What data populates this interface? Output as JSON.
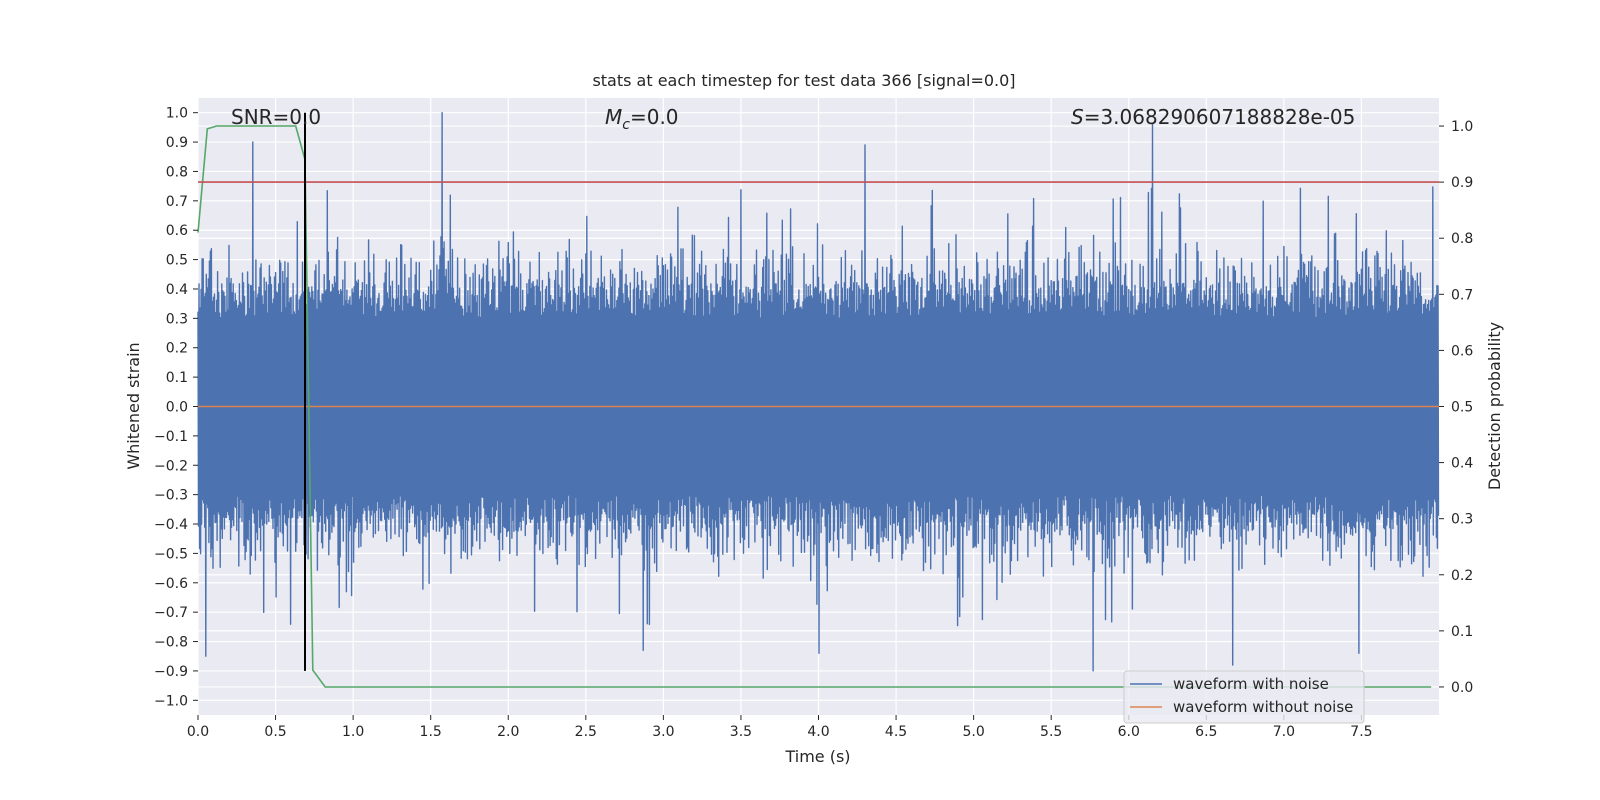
{
  "chart_data": {
    "type": "line",
    "title": "stats at each timestep for test data 366 [signal=0.0]",
    "xlabel": "Time (s)",
    "ylabel": "Whitened strain",
    "y2label": "Detection probability",
    "xlim": [
      0.0,
      8.0
    ],
    "ylim": [
      -1.05,
      1.05
    ],
    "y2lim": [
      -0.05,
      1.05
    ],
    "xticks": [
      0.0,
      0.5,
      1.0,
      1.5,
      2.0,
      2.5,
      3.0,
      3.5,
      4.0,
      4.5,
      5.0,
      5.5,
      6.0,
      6.5,
      7.0,
      7.5
    ],
    "yticks": [
      -1.0,
      -0.9,
      -0.8,
      -0.7,
      -0.6,
      -0.5,
      -0.4,
      -0.3,
      -0.2,
      -0.1,
      0.0,
      0.1,
      0.2,
      0.3,
      0.4,
      0.5,
      0.6,
      0.7,
      0.8,
      0.9,
      1.0
    ],
    "y2ticks": [
      0.0,
      0.1,
      0.2,
      0.3,
      0.4,
      0.5,
      0.6,
      0.7,
      0.8,
      0.9,
      1.0
    ],
    "grid": true,
    "legend_position": "lower-right",
    "annotations": {
      "snr": "SNR=0.0",
      "mc_symbol": "M",
      "mc_subscript": "c",
      "mc_value": "=0.0",
      "s_symbol": "S",
      "s_value": "=3.068290607188828e-05"
    },
    "series": [
      {
        "name": "waveform with noise",
        "axis": "left",
        "color": "#4c72b0",
        "description_stats": {
          "typical_abs_max": 0.45
        },
        "peaks": [
          {
            "x": 0.35,
            "y": 0.9
          },
          {
            "x": 1.57,
            "y": 1.0
          },
          {
            "x": 4.3,
            "y": 0.89
          },
          {
            "x": 6.15,
            "y": 0.96
          },
          {
            "x": 0.05,
            "y": -0.85
          },
          {
            "x": 2.87,
            "y": -0.83
          },
          {
            "x": 4.0,
            "y": -0.84
          },
          {
            "x": 5.77,
            "y": -0.9
          },
          {
            "x": 6.67,
            "y": -0.88
          },
          {
            "x": 7.48,
            "y": -0.84
          }
        ]
      },
      {
        "name": "waveform without noise",
        "axis": "left",
        "color": "#dd8452",
        "x": [
          0.0,
          8.0
        ],
        "y": [
          0.0,
          0.0
        ]
      },
      {
        "axis": "right",
        "color": "#55a868",
        "x": [
          0.0,
          0.06,
          0.12,
          0.3,
          0.5,
          0.63,
          0.69,
          0.74,
          0.82,
          1.2,
          7.95
        ],
        "y": [
          0.81,
          0.995,
          1.0,
          1.0,
          1.0,
          1.0,
          0.94,
          0.03,
          0.0,
          0.0,
          0.0
        ]
      },
      {
        "axis": "right",
        "color": "#c44e52",
        "x": [
          0.0,
          8.0
        ],
        "y": [
          0.9,
          0.9
        ]
      },
      {
        "axis": "left",
        "color": "#000000",
        "x": [
          0.69,
          0.69
        ],
        "y": [
          -0.9,
          1.0
        ]
      }
    ]
  }
}
